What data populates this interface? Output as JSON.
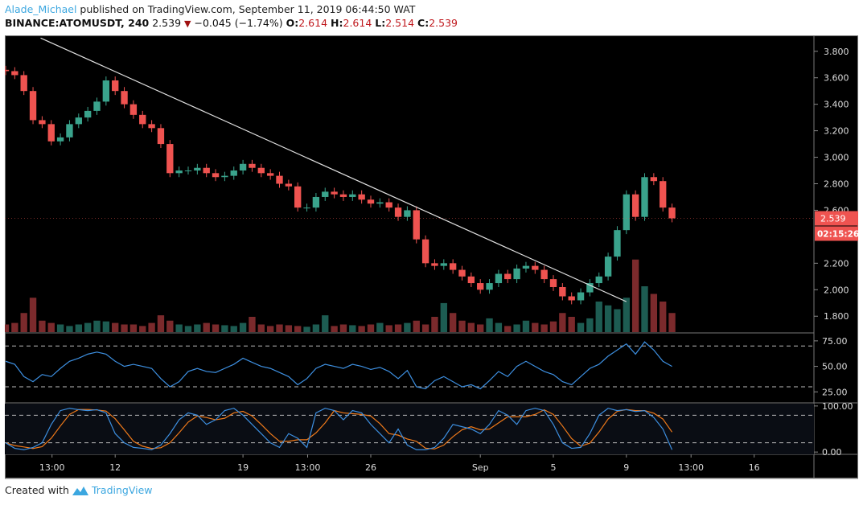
{
  "header": {
    "author": "Alade_Michael",
    "published_text": "published on TradingView.com, September 11, 2019 06:44:50 WAT",
    "symbol": "BINANCE:ATOMUSDT, 240",
    "last": "2.539",
    "change": "−0.045 (−1.74%)",
    "o_label": "O:",
    "o": "2.614",
    "h_label": "H:",
    "h": "2.614",
    "l_label": "L:",
    "l": "2.514",
    "c_label": "C:",
    "c": "2.539"
  },
  "footer": {
    "created_with": "Created with",
    "brand": "TradingView"
  },
  "colors": {
    "up": "#3aa38c",
    "down": "#ef5350",
    "vol_up": "#1d5c52",
    "vol_down": "#7b2a2c",
    "rsi": "#3d8fe0",
    "stoch_k": "#3d8fe0",
    "stoch_d": "#f07a1a",
    "background": "#000000",
    "price_label": "#ef5350",
    "trendline": "#e0e0e0"
  },
  "chart_data": {
    "type": "candlestick",
    "interval": "240",
    "start_date": "2019-08-06",
    "step_hours": 12,
    "closes": [
      3.65,
      3.62,
      3.5,
      3.28,
      3.25,
      3.12,
      3.15,
      3.25,
      3.3,
      3.35,
      3.42,
      3.58,
      3.5,
      3.4,
      3.32,
      3.25,
      3.22,
      3.1,
      2.88,
      2.9,
      2.9,
      2.92,
      2.88,
      2.85,
      2.86,
      2.9,
      2.95,
      2.92,
      2.88,
      2.86,
      2.8,
      2.78,
      2.62,
      2.62,
      2.7,
      2.74,
      2.72,
      2.7,
      2.72,
      2.68,
      2.65,
      2.66,
      2.62,
      2.55,
      2.6,
      2.38,
      2.2,
      2.18,
      2.2,
      2.15,
      2.1,
      2.05,
      2.0,
      2.05,
      2.12,
      2.08,
      2.16,
      2.18,
      2.15,
      2.08,
      2.02,
      1.95,
      1.92,
      1.98,
      2.05,
      2.1,
      2.25,
      2.45,
      2.72,
      2.55,
      2.85,
      2.82,
      2.62,
      2.539
    ],
    "volumes": [
      10,
      12,
      25,
      45,
      15,
      12,
      10,
      8,
      10,
      12,
      15,
      14,
      12,
      10,
      10,
      8,
      12,
      22,
      15,
      10,
      8,
      10,
      12,
      10,
      9,
      8,
      12,
      20,
      10,
      8,
      10,
      9,
      8,
      7,
      10,
      22,
      8,
      10,
      9,
      8,
      10,
      12,
      9,
      10,
      12,
      15,
      10,
      20,
      38,
      25,
      15,
      12,
      10,
      18,
      12,
      8,
      10,
      15,
      12,
      10,
      14,
      25,
      20,
      12,
      18,
      40,
      35,
      30,
      45,
      95,
      60,
      50,
      40,
      25
    ],
    "price_axis": {
      "ticks": [
        "3.800",
        "3.600",
        "3.400",
        "3.200",
        "3.000",
        "2.800",
        "2.600",
        "2.200",
        "2.000",
        "1.800"
      ],
      "range": [
        1.68,
        3.92
      ]
    },
    "last_price_label": "2.539",
    "countdown_label": "02:15:26",
    "trendline": {
      "start": {
        "date": "2019-08-07T22:00",
        "price": 3.9
      },
      "end": {
        "date": "2019-09-09T00:00",
        "price": 1.91
      }
    },
    "rsi": {
      "ticks": [
        "75.00",
        "50.00",
        "25.00"
      ],
      "levels": [
        70,
        30
      ],
      "range": [
        15,
        82
      ],
      "values": [
        55,
        52,
        40,
        35,
        42,
        40,
        48,
        55,
        58,
        62,
        64,
        62,
        55,
        50,
        52,
        50,
        48,
        38,
        30,
        35,
        45,
        48,
        45,
        44,
        48,
        52,
        58,
        54,
        50,
        48,
        44,
        40,
        32,
        38,
        48,
        52,
        50,
        48,
        52,
        50,
        47,
        49,
        45,
        38,
        46,
        30,
        28,
        36,
        40,
        35,
        30,
        32,
        28,
        36,
        45,
        40,
        50,
        55,
        50,
        45,
        42,
        35,
        32,
        40,
        48,
        52,
        60,
        66,
        72,
        62,
        74,
        66,
        55,
        50
      ]
    },
    "stoch": {
      "ticks": [
        "100.00",
        "0.00"
      ],
      "levels": [
        80,
        20
      ],
      "range": [
        -5,
        105
      ],
      "k": [
        20,
        8,
        5,
        10,
        20,
        60,
        90,
        95,
        92,
        90,
        92,
        85,
        40,
        20,
        10,
        8,
        5,
        15,
        40,
        70,
        85,
        80,
        60,
        70,
        90,
        95,
        80,
        60,
        40,
        20,
        10,
        40,
        30,
        10,
        85,
        95,
        90,
        70,
        90,
        85,
        60,
        40,
        20,
        50,
        15,
        5,
        5,
        10,
        30,
        60,
        55,
        50,
        40,
        60,
        90,
        80,
        60,
        90,
        95,
        90,
        60,
        20,
        8,
        10,
        40,
        80,
        95,
        90,
        92,
        88,
        90,
        75,
        50,
        5
      ]
    },
    "time_axis": {
      "ticks": [
        {
          "label": "13:00",
          "date": "2019-08-08T13:00"
        },
        {
          "label": "12",
          "date": "2019-08-12T00:00"
        },
        {
          "label": "19",
          "date": "2019-08-19T00:00"
        },
        {
          "label": "13:00",
          "date": "2019-08-22T13:00"
        },
        {
          "label": "26",
          "date": "2019-08-26T00:00"
        },
        {
          "label": "Sep",
          "date": "2019-09-01T00:00"
        },
        {
          "label": "5",
          "date": "2019-09-05T00:00"
        },
        {
          "label": "9",
          "date": "2019-09-09T00:00"
        },
        {
          "label": "13:00",
          "date": "2019-09-12T13:00"
        },
        {
          "label": "16",
          "date": "2019-09-16T00:00"
        }
      ]
    }
  }
}
